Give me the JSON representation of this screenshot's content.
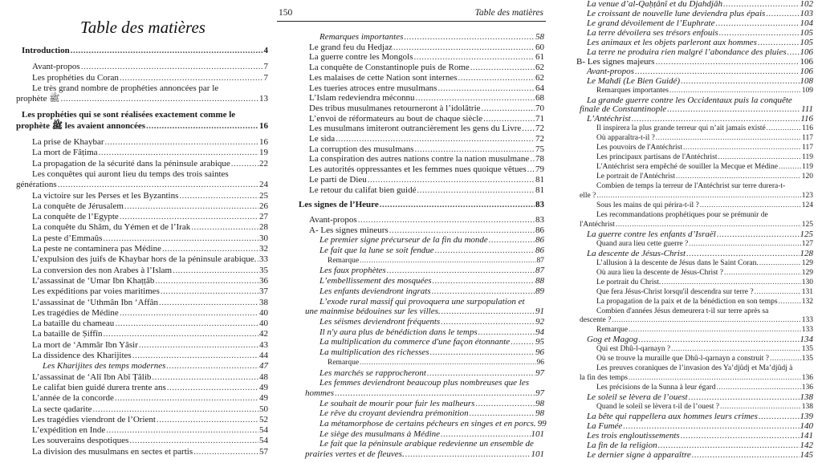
{
  "left_page": {
    "title": "Table des matières",
    "entries": [
      {
        "t": "Introduction",
        "p": "4",
        "lv": 0,
        "st": "b"
      },
      {
        "t": "Avant-propos",
        "p": "7",
        "lv": 1,
        "st": ""
      },
      {
        "t": "Les prophéties du Coran",
        "p": "7",
        "lv": 1,
        "st": ""
      },
      {
        "t": "Le très grand nombre de prophéties annoncées par le",
        "t2": "prophète ﷺ",
        "p": "13",
        "lv": 1,
        "st": ""
      },
      {
        "t": "Les prophéties qui se sont réalisées exactement comme le",
        "t2": "prophète ﷺ les avaient annoncées",
        "p": "16",
        "lv": 0,
        "st": "b"
      },
      {
        "t": "La prise de Khaybar",
        "p": "16",
        "lv": 1,
        "st": ""
      },
      {
        "t": "La mort de Fâṭima",
        "p": "19",
        "lv": 1,
        "st": ""
      },
      {
        "t": "La propagation de la sécurité dans la péninsule arabique",
        "p": "22",
        "lv": 1,
        "st": ""
      },
      {
        "t": "Les conquêtes qui auront lieu du temps des trois saintes",
        "t2": "générations",
        "p": "24",
        "lv": 1,
        "st": ""
      },
      {
        "t": "La victoire sur les Perses et les Byzantins",
        "p": "25",
        "lv": 1,
        "st": ""
      },
      {
        "t": "La conquête de Jérusalem",
        "p": "26",
        "lv": 1,
        "st": ""
      },
      {
        "t": "La conquête de l’Egypte",
        "p": "27",
        "lv": 1,
        "st": ""
      },
      {
        "t": "La conquête du Shâm, du Yémen et de l’Irak",
        "p": "28",
        "lv": 1,
        "st": ""
      },
      {
        "t": "La peste d’Emmaûs",
        "p": "30",
        "lv": 1,
        "st": ""
      },
      {
        "t": "La peste ne contaminera pas Médine",
        "p": "32",
        "lv": 1,
        "st": ""
      },
      {
        "t": "L’expulsion des juifs de Khaybar hors de la péninsule arabique.",
        "p": "33",
        "lv": 1,
        "st": ""
      },
      {
        "t": "La conversion des non Arabes à l’Islam",
        "p": "35",
        "lv": 1,
        "st": ""
      },
      {
        "t": "L’assassinat de ‘Umar Ibn Khaṭṭâb",
        "p": "36",
        "lv": 1,
        "st": ""
      },
      {
        "t": "Les expéditions par voies maritimes",
        "p": "37",
        "lv": 1,
        "st": ""
      },
      {
        "t": "L’assassinat de ‘Uthmân Ibn ‘Affân",
        "p": "38",
        "lv": 1,
        "st": ""
      },
      {
        "t": "Les tragédies de Médine",
        "p": "40",
        "lv": 1,
        "st": ""
      },
      {
        "t": "La bataille du chameau",
        "p": "40",
        "lv": 1,
        "st": ""
      },
      {
        "t": "La bataille de Ṣiffîn",
        "p": "42",
        "lv": 1,
        "st": ""
      },
      {
        "t": "La mort de ‘Ammâr Ibn Yâsir",
        "p": "43",
        "lv": 1,
        "st": ""
      },
      {
        "t": "La dissidence des Kharijites",
        "p": "44",
        "lv": 1,
        "st": ""
      },
      {
        "t": "Les Kharijites des temps modernes",
        "p": "47",
        "lv": 2,
        "st": "i"
      },
      {
        "t": "L’assassinat de ‘Alî Ibn Abî Ṭâlib",
        "p": "48",
        "lv": 1,
        "st": ""
      },
      {
        "t": "Le califat bien guidé durera trente ans",
        "p": "49",
        "lv": 1,
        "st": ""
      },
      {
        "t": "L’année de la concorde",
        "p": "49",
        "lv": 1,
        "st": ""
      },
      {
        "t": "La secte qadarite",
        "p": "50",
        "lv": 1,
        "st": ""
      },
      {
        "t": "Les tragédies viendront de l’Orient",
        "p": "52",
        "lv": 1,
        "st": ""
      },
      {
        "t": "L’expédition en Inde",
        "p": "54",
        "lv": 1,
        "st": ""
      },
      {
        "t": "Les souverains despotiques",
        "p": "54",
        "lv": 1,
        "st": ""
      },
      {
        "t": "La division des musulmans en sectes et partis",
        "p": "57",
        "lv": 1,
        "st": ""
      }
    ]
  },
  "middle_page": {
    "page_number": "150",
    "running_title": "Table des matières",
    "entries": [
      {
        "t": "Remarques importantes",
        "p": "58",
        "lv": 2,
        "st": "i"
      },
      {
        "t": "Le grand feu du Hedjaz",
        "p": "60",
        "lv": 1,
        "st": ""
      },
      {
        "t": "La guerre contre les Mongols",
        "p": "61",
        "lv": 1,
        "st": ""
      },
      {
        "t": "La conquête de Constantinople puis de Rome",
        "p": "62",
        "lv": 1,
        "st": ""
      },
      {
        "t": "Les malaises de cette Nation sont internes",
        "p": "62",
        "lv": 1,
        "st": ""
      },
      {
        "t": "Les tueries atroces entre musulmans",
        "p": "64",
        "lv": 1,
        "st": ""
      },
      {
        "t": "L’Islam redeviendra méconnu",
        "p": "68",
        "lv": 1,
        "st": ""
      },
      {
        "t": "Des tribus musulmanes retourneront à l’idolâtrie",
        "p": "70",
        "lv": 1,
        "st": ""
      },
      {
        "t": "L’envoi de réformateurs au bout de chaque siècle",
        "p": "71",
        "lv": 1,
        "st": ""
      },
      {
        "t": "Les musulmans imiteront outrancièrement les gens du Livre",
        "p": "72",
        "lv": 1,
        "st": ""
      },
      {
        "t": "Le sida",
        "p": "72",
        "lv": 1,
        "st": ""
      },
      {
        "t": "La corruption des musulmans",
        "p": "75",
        "lv": 1,
        "st": ""
      },
      {
        "t": "La conspiration des autres nations contre la nation musulmane",
        "p": "78",
        "lv": 1,
        "st": ""
      },
      {
        "t": "Les autorités oppressantes et les femmes nues quoique vêtues",
        "p": "79",
        "lv": 1,
        "st": ""
      },
      {
        "t": "Le parti de Dieu",
        "p": "81",
        "lv": 1,
        "st": ""
      },
      {
        "t": "Le retour du califat bien guidé",
        "p": "81",
        "lv": 1,
        "st": ""
      },
      {
        "t": "Les signes de l’Heure",
        "p": "83",
        "lv": 0,
        "st": "b"
      },
      {
        "t": "Avant-propos",
        "p": "83",
        "lv": 1,
        "st": ""
      },
      {
        "t": "A- Les signes mineurs",
        "p": "86",
        "lv": 1,
        "st": ""
      },
      {
        "t": "Le premier signe précurseur de la fin du monde",
        "p": "86",
        "lv": 2,
        "st": "i"
      },
      {
        "t": "Le fait que la lune se soit fendue",
        "p": "86",
        "lv": 2,
        "st": "i"
      },
      {
        "t": "Remarque",
        "p": "87",
        "lv": 3,
        "st": "s"
      },
      {
        "t": "Les faux prophètes",
        "p": "87",
        "lv": 2,
        "st": "i"
      },
      {
        "t": "L’embellissement des mosquées",
        "p": "88",
        "lv": 2,
        "st": "i"
      },
      {
        "t": "Les enfants deviendront ingrats",
        "p": "89",
        "lv": 2,
        "st": "i"
      },
      {
        "t": "L’exode rural massif qui provoquera une surpopulation et",
        "t2": "une mainmise bédouines sur les villes.",
        "p": "91",
        "lv": 2,
        "st": "i"
      },
      {
        "t": "Les séismes deviendront fréquents",
        "p": "92",
        "lv": 2,
        "st": "i"
      },
      {
        "t": "Il n'y aura plus de bénédiction dans le temps",
        "p": "94",
        "lv": 2,
        "st": "i"
      },
      {
        "t": "La multiplication du commerce d'une façon étonnante",
        "p": "95",
        "lv": 2,
        "st": "i"
      },
      {
        "t": "La multiplication des richesses",
        "p": "96",
        "lv": 2,
        "st": "i"
      },
      {
        "t": "Remarque",
        "p": "96",
        "lv": 3,
        "st": "s"
      },
      {
        "t": "Les marchés se rapprocheront",
        "p": "97",
        "lv": 2,
        "st": "i"
      },
      {
        "t": "Les femmes deviendront beaucoup plus nombreuses que les",
        "t2": "hommes",
        "p": "97",
        "lv": 2,
        "st": "i"
      },
      {
        "t": "Le souhait de mourir pour fuir les malheurs",
        "p": "98",
        "lv": 2,
        "st": "i"
      },
      {
        "t": "Le rêve du croyant deviendra prémonition",
        "p": "98",
        "lv": 2,
        "st": "i"
      },
      {
        "t": "La métamorphose de certains pécheurs en singes et en porcs.",
        "p": "99",
        "lv": 2,
        "st": "i"
      },
      {
        "t": "Le siège des musulmans à Médine",
        "p": "101",
        "lv": 2,
        "st": "i"
      },
      {
        "t": "Le fait que la péninsule arabique redevienne un ensemble de",
        "t2": "prairies vertes et de fleuves.",
        "p": "101",
        "lv": 2,
        "st": "i"
      }
    ]
  },
  "right_page": {
    "entries": [
      {
        "t": "La venue d’al-Qaḥṭânî et du Djahdjâh",
        "p": "102",
        "lv": 2,
        "st": "i"
      },
      {
        "t": "Le croissant de nouvelle lune deviendra plus épais",
        "p": "103",
        "lv": 2,
        "st": "i"
      },
      {
        "t": "Le grand dévoilement de l’Euphrate",
        "p": "104",
        "lv": 2,
        "st": "i"
      },
      {
        "t": "La terre dévoilera ses trésors enfouis",
        "p": "105",
        "lv": 2,
        "st": "i"
      },
      {
        "t": "Les animaux et les objets parleront aux hommes",
        "p": "105",
        "lv": 2,
        "st": "i"
      },
      {
        "t": "La terre ne produira rien malgré l’abondance des pluies",
        "p": "106",
        "lv": 2,
        "st": "i"
      },
      {
        "t": "B- Les signes majeurs",
        "p": "106",
        "lv": 1,
        "st": ""
      },
      {
        "t": "Avant-propos",
        "p": "106",
        "lv": 2,
        "st": "i"
      },
      {
        "t": "Le Mahdî (Le Bien Guidé)",
        "p": "108",
        "lv": 2,
        "st": "i"
      },
      {
        "t": "Remarques importantes",
        "p": "109",
        "lv": 3,
        "st": "s"
      },
      {
        "t": "La grande guerre contre les Occidentaux puis la conquête",
        "t2": "finale de Constantinople",
        "p": "111",
        "lv": 2,
        "st": "i"
      },
      {
        "t": "L’Antéchrist",
        "p": "116",
        "lv": 2,
        "st": "i"
      },
      {
        "t": "Il inspirera la plus grande terreur qui n’ait jamais existé",
        "p": "116",
        "lv": 3,
        "st": "s"
      },
      {
        "t": "Où apparaîtra-t-il ?",
        "p": "117",
        "lv": 3,
        "st": "s"
      },
      {
        "t": "Les pouvoirs de l'Antéchrist",
        "p": "117",
        "lv": 3,
        "st": "s"
      },
      {
        "t": "Les principaux partisans de l'Antéchrist",
        "p": "119",
        "lv": 3,
        "st": "s"
      },
      {
        "t": "L'Antéchrist sera empêché de souiller la Mecque et Médine",
        "p": "119",
        "lv": 3,
        "st": "s"
      },
      {
        "t": "Le portrait de l'Antéchrist",
        "p": "120",
        "lv": 3,
        "st": "s"
      },
      {
        "t": "Combien de temps la terreur de l'Antéchrist sur terre durera-t-",
        "t2": "elle ?",
        "p": "123",
        "lv": 3,
        "st": "s"
      },
      {
        "t": "Sous les mains de qui périra-t-il ?",
        "p": "124",
        "lv": 3,
        "st": "s"
      },
      {
        "t": "Les recommandations prophétiques pour se prémunir de",
        "t2": "l'Antéchrist",
        "p": "125",
        "lv": 3,
        "st": "s"
      },
      {
        "t": "La guerre contre les enfants d’Israël",
        "p": "125",
        "lv": 2,
        "st": "i"
      },
      {
        "t": "Quand aura lieu cette guerre ?",
        "p": "127",
        "lv": 3,
        "st": "s"
      },
      {
        "t": "La descente de Jésus-Christ",
        "p": "128",
        "lv": 2,
        "st": "i"
      },
      {
        "t": "L’allusion à la descente de Jésus dans le Saint Coran.",
        "p": "129",
        "lv": 3,
        "st": "s"
      },
      {
        "t": "Où aura lieu la descente de Jésus-Christ ?",
        "p": "129",
        "lv": 3,
        "st": "s"
      },
      {
        "t": "Le portrait du Christ.",
        "p": "130",
        "lv": 3,
        "st": "s"
      },
      {
        "t": "Que fera Jésus-Christ lorsqu'il descendra sur terre ?",
        "p": "131",
        "lv": 3,
        "st": "s"
      },
      {
        "t": "La propagation de la paix et de la bénédiction en son temps",
        "p": "132",
        "lv": 3,
        "st": "s"
      },
      {
        "t": "Combien d'années Jésus demeurera t-il sur terre après sa",
        "t2": "descente ?",
        "p": "133",
        "lv": 3,
        "st": "s"
      },
      {
        "t": "Remarque",
        "p": "133",
        "lv": 3,
        "st": "s"
      },
      {
        "t": "Gog et Magog",
        "p": "134",
        "lv": 2,
        "st": "i"
      },
      {
        "t": "Qui est Dhû-l-qarnayn ?",
        "p": "135",
        "lv": 3,
        "st": "s"
      },
      {
        "t": "Où se trouve la muraille que Dhû-l-qarnayn a construit ?",
        "p": "135",
        "lv": 3,
        "st": "s"
      },
      {
        "t": "Les preuves coraniques de l’invasion des Ya’djûdj et Ma’djûdj à",
        "t2": "la fin des temps",
        "p": "136",
        "lv": 3,
        "st": "s"
      },
      {
        "t": "Les précisions de la Sunna à leur égard",
        "p": "136",
        "lv": 3,
        "st": "s"
      },
      {
        "t": "Le soleil se lèvera de l’ouest",
        "p": "138",
        "lv": 2,
        "st": "i"
      },
      {
        "t": "Quand le soleil se lèvera t-il de l’ouest ?",
        "p": "138",
        "lv": 3,
        "st": "s"
      },
      {
        "t": "La bête qui rappellera aux hommes leurs crimes",
        "p": "139",
        "lv": 2,
        "st": "i"
      },
      {
        "t": "La Fumée",
        "p": "140",
        "lv": 2,
        "st": "i"
      },
      {
        "t": "Les trois engloutissements",
        "p": "141",
        "lv": 2,
        "st": "i"
      },
      {
        "t": "La fin de la religion",
        "p": "142",
        "lv": 2,
        "st": "i"
      },
      {
        "t": "Le dernier signe à apparaître",
        "p": "145",
        "lv": 2,
        "st": "i"
      }
    ]
  }
}
